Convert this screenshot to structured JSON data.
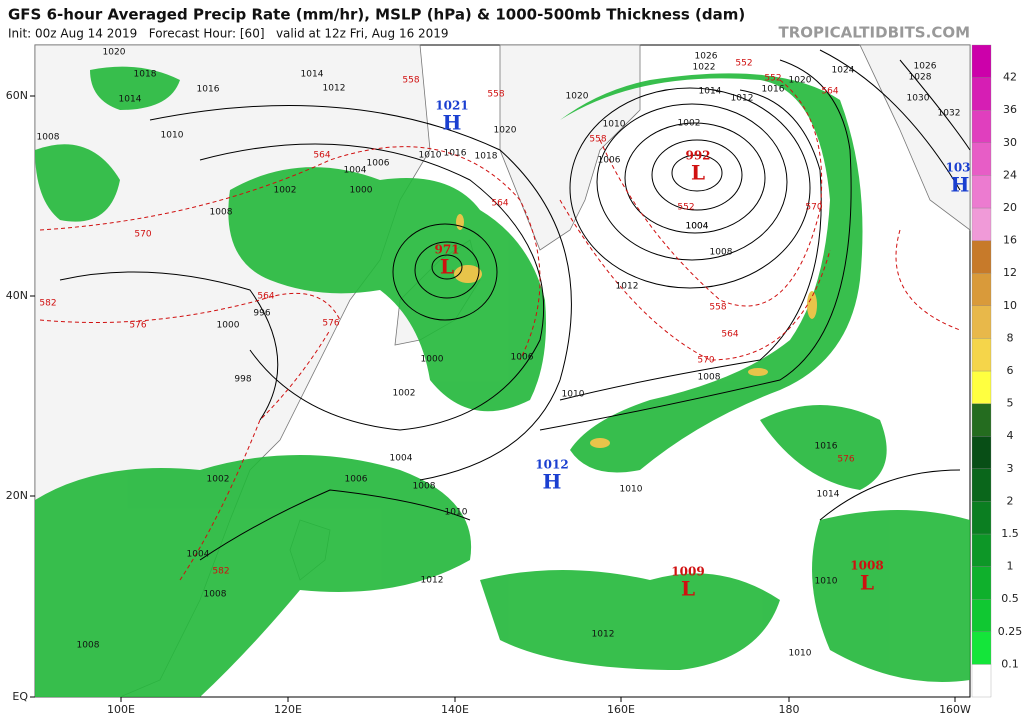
{
  "header": {
    "title": "GFS 6-hour Averaged Precip Rate (mm/hr), MSLP (hPa) & 1000-500mb Thickness (dam)",
    "subtitle": "Init: 00z Aug 14 2019   Forecast Hour: [60]   valid at 12z Fri, Aug 16 2019",
    "brand": "TROPICALTIDBITS.COM"
  },
  "axes": {
    "lat_labels": [
      "60N",
      "40N",
      "20N",
      "EQ"
    ],
    "lon_labels": [
      "100E",
      "120E",
      "140E",
      "160E",
      "180",
      "160W"
    ]
  },
  "colorbar": {
    "labels": [
      "0.1",
      "0.25",
      "0.5",
      "1",
      "1.5",
      "2",
      "3",
      "4",
      "5",
      "6",
      "8",
      "10",
      "12",
      "16",
      "20",
      "24",
      "30",
      "36",
      "42"
    ]
  },
  "centers": [
    {
      "letter": "H",
      "pressure": "1021"
    },
    {
      "letter": "L",
      "pressure": "992"
    },
    {
      "letter": "L",
      "pressure": "971"
    },
    {
      "letter": "H",
      "pressure": "1012"
    },
    {
      "letter": "L",
      "pressure": "1009"
    },
    {
      "letter": "L",
      "pressure": "1008"
    },
    {
      "letter": "H",
      "pressure": "103"
    }
  ],
  "isobar_labels": [
    "1020",
    "1018",
    "1014",
    "1016",
    "1010",
    "1008",
    "1014",
    "1012",
    "1006",
    "1004",
    "1002",
    "1000",
    "1008",
    "1010",
    "1016",
    "1018",
    "1020",
    "1020",
    "1006",
    "1010",
    "1002",
    "1004",
    "1008",
    "1012",
    "1010",
    "1008",
    "1006",
    "1002",
    "1004",
    "1006",
    "1008",
    "1010",
    "1010",
    "1014",
    "1016",
    "1012",
    "1012",
    "1010",
    "1010",
    "1008",
    "1004",
    "1002",
    "998",
    "1000",
    "996",
    "1000",
    "1008",
    "1026",
    "1022",
    "1024",
    "1026",
    "1028",
    "1030",
    "1032",
    "1020",
    "1016",
    "1014",
    "1012",
    "1004"
  ],
  "thickness_labels": [
    "558",
    "558",
    "564",
    "570",
    "582",
    "576",
    "564",
    "558",
    "552",
    "558",
    "564",
    "570",
    "564",
    "570",
    "576",
    "582",
    "564",
    "576",
    "552",
    "552"
  ]
}
